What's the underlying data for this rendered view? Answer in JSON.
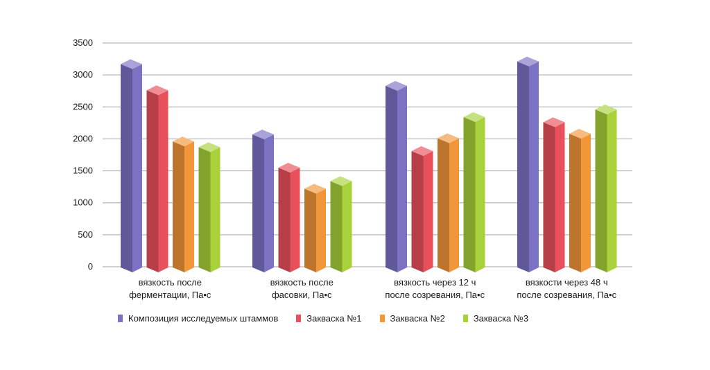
{
  "chart_data": {
    "type": "bar",
    "categories": [
      [
        "вязкость после",
        "ферментации, Па•с"
      ],
      [
        "вязкость после",
        "фасовки, Па•с"
      ],
      [
        "вязкость через 12 ч",
        "после созревания, Па•с"
      ],
      [
        "вязкости через 48 ч",
        "после созревания, Па•с"
      ]
    ],
    "series": [
      {
        "name": "Композиция исследуемых штаммов",
        "color": "#7b72c4",
        "values": [
          3170,
          2070,
          2830,
          3210
        ]
      },
      {
        "name": "Закваска №1",
        "color": "#e8505b",
        "values": [
          2760,
          1550,
          1810,
          2260
        ]
      },
      {
        "name": "Закваска №2",
        "color": "#f2963a",
        "values": [
          1960,
          1220,
          2010,
          2080
        ]
      },
      {
        "name": "Закваска №3",
        "color": "#a8d13a",
        "values": [
          1870,
          1340,
          2340,
          2460
        ]
      }
    ],
    "yticks": [
      "0",
      "500",
      "1000",
      "1500",
      "2000",
      "2500",
      "3000",
      "3500"
    ],
    "ylim": [
      0,
      3500
    ],
    "grid": true,
    "legend_position": "bottom"
  }
}
